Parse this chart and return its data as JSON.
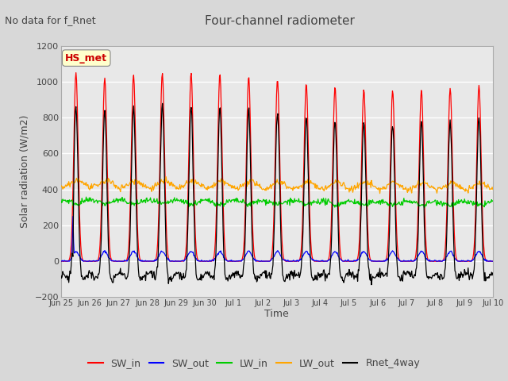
{
  "title": "Four-channel radiometer",
  "subtitle": "No data for f_Rnet",
  "ylabel": "Solar radiation (W/m2)",
  "xlabel": "Time",
  "ylim": [
    -200,
    1200
  ],
  "yticks": [
    -200,
    0,
    200,
    400,
    600,
    800,
    1000,
    1200
  ],
  "legend_labels": [
    "SW_in",
    "SW_out",
    "LW_in",
    "LW_out",
    "Rnet_4way"
  ],
  "legend_colors": [
    "red",
    "blue",
    "green",
    "orange",
    "black"
  ],
  "hs_met_label": "HS_met",
  "hs_met_color": "#cc0000",
  "hs_met_bg": "#ffffcc",
  "n_days": 15,
  "fig_bg": "#d8d8d8",
  "plot_bg": "#e8e8e8",
  "grid_color": "white",
  "tick_labels": [
    "Jun 25",
    "Jun 26",
    "Jun 27",
    "Jun 28",
    "Jun 29",
    "Jun 30",
    "Jul 1",
    "Jul 2",
    "Jul 3",
    "Jul 4",
    "Jul 5",
    "Jul 6",
    "Jul 7",
    "Jul 8",
    "Jul 9",
    "Jul 10"
  ]
}
